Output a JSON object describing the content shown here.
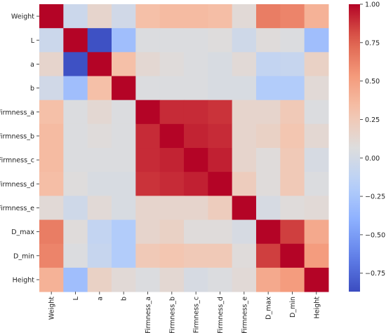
{
  "chart_data": {
    "type": "heatmap",
    "title": "",
    "xlabel": "",
    "ylabel": "",
    "variables": [
      "Weight",
      "L",
      "a",
      "b",
      "Firmness_a",
      "Firmness_b",
      "Firmness_c",
      "Firmness_d",
      "Firmness_e",
      "D_max",
      "D_min",
      "Height"
    ],
    "matrix": [
      [
        1.0,
        -0.05,
        0.15,
        -0.02,
        0.32,
        0.35,
        0.35,
        0.33,
        0.1,
        0.65,
        0.62,
        0.4
      ],
      [
        -0.05,
        1.0,
        -0.85,
        -0.3,
        0.05,
        0.05,
        0.05,
        0.07,
        -0.03,
        0.08,
        0.05,
        -0.3
      ],
      [
        0.15,
        -0.85,
        1.0,
        0.32,
        0.12,
        0.08,
        0.05,
        0.03,
        0.1,
        -0.1,
        -0.08,
        0.18
      ],
      [
        -0.02,
        -0.3,
        0.32,
        1.0,
        0.05,
        0.05,
        0.05,
        0.03,
        0.03,
        -0.2,
        -0.2,
        0.1
      ],
      [
        0.32,
        0.05,
        0.12,
        0.05,
        1.0,
        0.9,
        0.9,
        0.88,
        0.15,
        0.15,
        0.25,
        0.05
      ],
      [
        0.35,
        0.05,
        0.08,
        0.05,
        0.9,
        1.0,
        0.92,
        0.9,
        0.15,
        0.18,
        0.28,
        0.12
      ],
      [
        0.35,
        0.05,
        0.05,
        0.05,
        0.9,
        0.92,
        1.0,
        0.93,
        0.15,
        0.08,
        0.25,
        0.02
      ],
      [
        0.33,
        0.07,
        0.03,
        0.03,
        0.88,
        0.9,
        0.93,
        1.0,
        0.22,
        0.08,
        0.25,
        0.05
      ],
      [
        0.1,
        -0.03,
        0.1,
        0.03,
        0.15,
        0.15,
        0.15,
        0.22,
        1.0,
        0.02,
        0.08,
        0.1
      ],
      [
        0.65,
        0.08,
        -0.1,
        -0.2,
        0.15,
        0.18,
        0.08,
        0.08,
        0.02,
        1.0,
        0.85,
        0.45
      ],
      [
        0.62,
        0.05,
        -0.08,
        -0.2,
        0.25,
        0.28,
        0.25,
        0.25,
        0.08,
        0.85,
        1.0,
        0.52
      ],
      [
        0.4,
        -0.3,
        0.18,
        0.1,
        0.05,
        0.12,
        0.02,
        0.05,
        0.1,
        0.45,
        0.52,
        1.0
      ]
    ],
    "vmin": -0.87,
    "vmax": 1.0,
    "colormap": "coolwarm",
    "colorbar": {
      "ticks": [
        1.0,
        0.75,
        0.5,
        0.25,
        0.0,
        -0.25,
        -0.5,
        -0.75
      ],
      "tick_labels": [
        "1.00",
        "0.75",
        "0.50",
        "0.25",
        "0.00",
        "−0.25",
        "−0.50",
        "−0.75"
      ]
    },
    "grid": false,
    "legend": "colorbar-right"
  }
}
